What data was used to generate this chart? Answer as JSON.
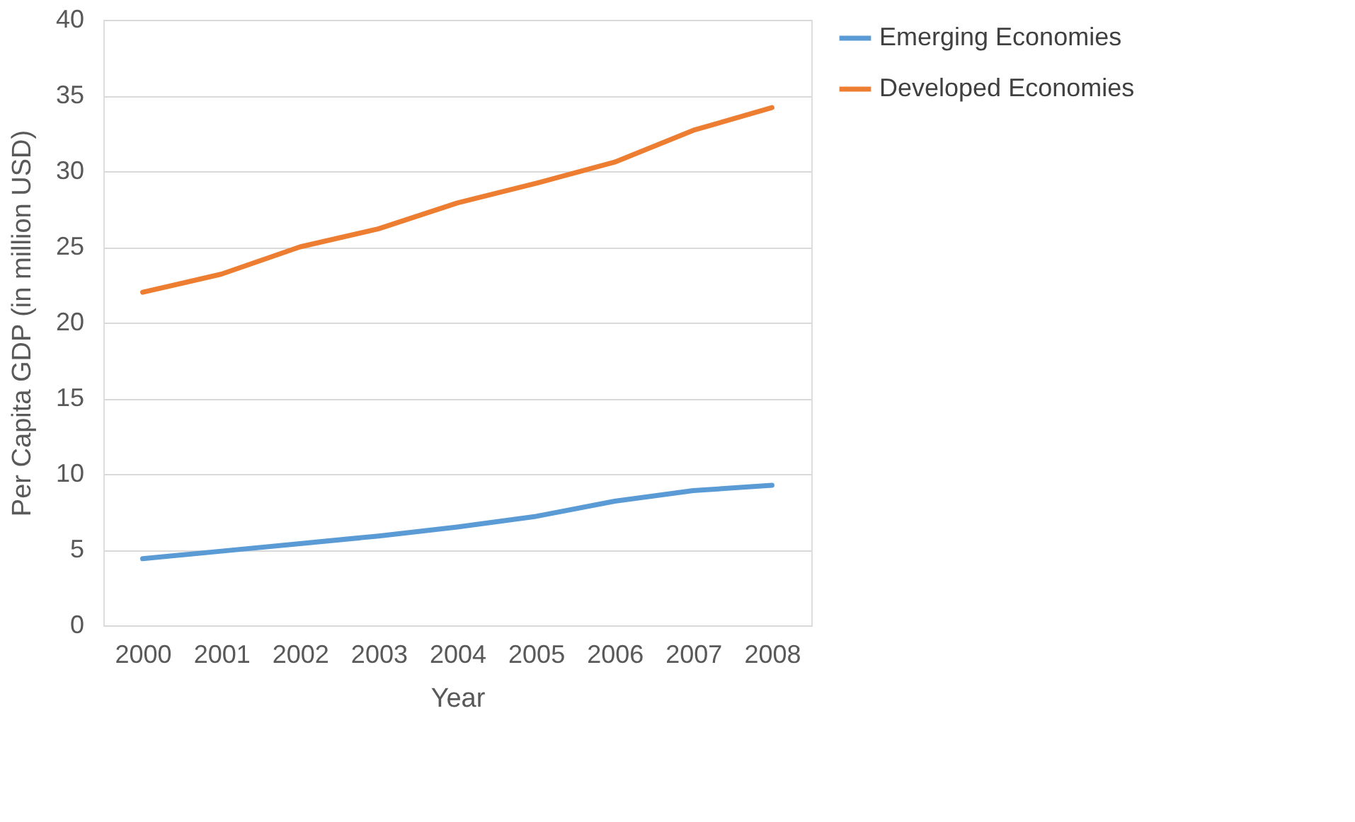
{
  "chart_data": {
    "type": "line",
    "xlabel": "Year",
    "ylabel": "Per Capita GDP (in million USD)",
    "categories": [
      "2000",
      "2001",
      "2002",
      "2003",
      "2004",
      "2005",
      "2006",
      "2007",
      "2008"
    ],
    "series": [
      {
        "name": "Emerging Economies",
        "color": "#5b9bd5",
        "values": [
          4.4,
          4.9,
          5.4,
          5.9,
          6.5,
          7.2,
          8.2,
          8.9,
          9.25
        ]
      },
      {
        "name": "Developed Economies",
        "color": "#ed7d31",
        "values": [
          22,
          23.2,
          25.0,
          26.2,
          27.9,
          29.2,
          30.6,
          32.7,
          34.2
        ]
      }
    ],
    "ylim": [
      0,
      40
    ],
    "yticks": [
      0,
      5,
      10,
      15,
      20,
      25,
      30,
      35,
      40
    ],
    "grid": "y",
    "legend": "right",
    "marker": "none",
    "line_style": "solid"
  }
}
